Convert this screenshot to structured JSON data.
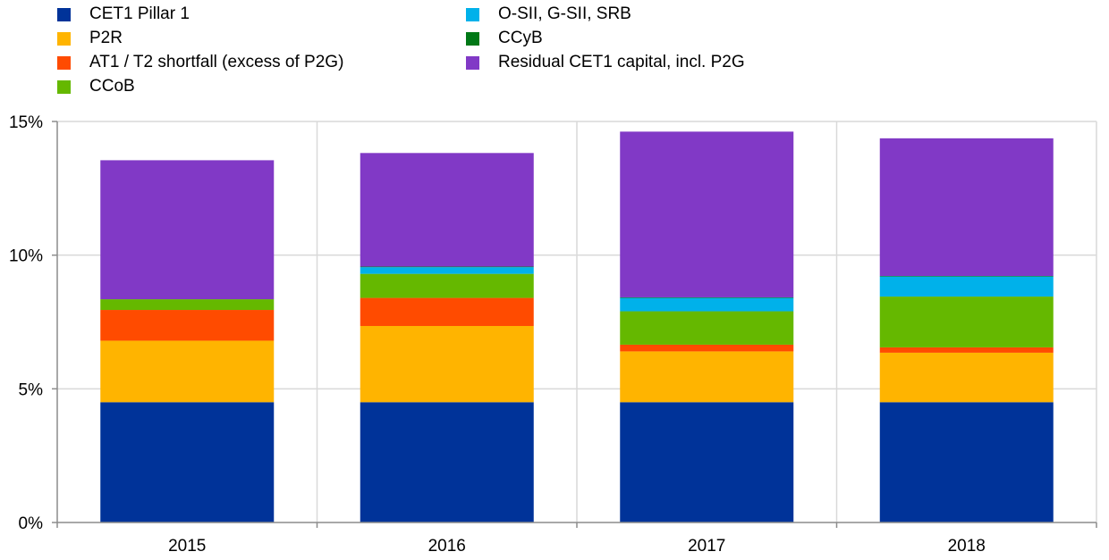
{
  "chart_data": {
    "type": "bar",
    "stacked": true,
    "categories": [
      "2015",
      "2016",
      "2017",
      "2018"
    ],
    "ylim": [
      0,
      15
    ],
    "yticks": [
      0,
      5,
      10,
      15
    ],
    "ytick_labels": [
      "0%",
      "5%",
      "10%",
      "15%"
    ],
    "grid": true,
    "legend_position": "top",
    "series": [
      {
        "name": "CET1 Pillar 1",
        "color": "#003399",
        "values": [
          4.5,
          4.5,
          4.5,
          4.5
        ]
      },
      {
        "name": "P2R",
        "color": "#FFB400",
        "values": [
          2.3,
          2.85,
          1.9,
          1.85
        ]
      },
      {
        "name": "AT1 / T2 shortfall (excess of P2G)",
        "color": "#FF4B00",
        "values": [
          1.15,
          1.05,
          0.25,
          0.2
        ]
      },
      {
        "name": "CCoB",
        "color": "#65B800",
        "values": [
          0.4,
          0.9,
          1.25,
          1.9
        ]
      },
      {
        "name": "O-SII, G-SII, SRB",
        "color": "#00B1EA",
        "values": [
          0.0,
          0.25,
          0.5,
          0.75
        ]
      },
      {
        "name": "CCyB",
        "color": "#007816",
        "values": [
          0.0,
          0.02,
          0.02,
          0.02
        ]
      },
      {
        "name": "Residual CET1 capital, incl. P2G",
        "color": "#8139C6",
        "values": [
          5.2,
          4.25,
          6.2,
          5.15
        ]
      }
    ],
    "legend_order": [
      0,
      1,
      2,
      3,
      4,
      5,
      6
    ]
  }
}
